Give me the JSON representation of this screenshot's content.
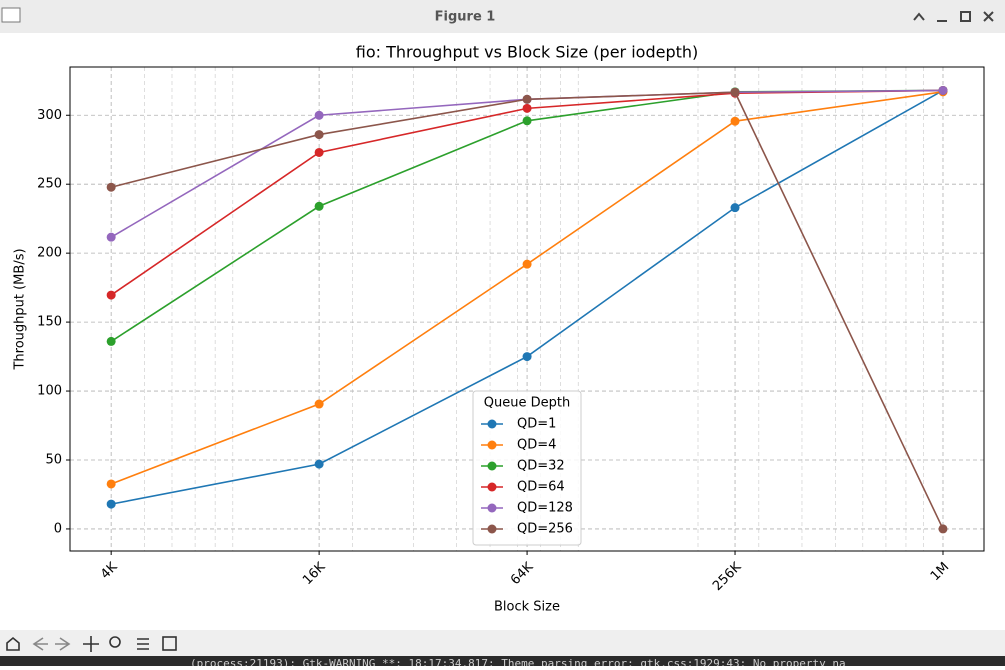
{
  "window": {
    "title": "Figure 1"
  },
  "chart_data": {
    "type": "line",
    "title": "fio: Throughput vs Block Size (per iodepth)",
    "x_label": "Block Size",
    "y_label": "Throughput (MB/s)",
    "x": [
      4,
      16,
      64,
      256,
      1024
    ],
    "xscale": "log",
    "xlim": [
      3.04,
      1346
    ],
    "xticks": [
      {
        "value": 4,
        "label": "4K"
      },
      {
        "value": 16,
        "label": "16K"
      },
      {
        "value": 64,
        "label": "64K"
      },
      {
        "value": 256,
        "label": "256K"
      },
      {
        "value": 1024,
        "label": "1M"
      }
    ],
    "ylim": [
      -16,
      335
    ],
    "yticks": [
      0,
      50,
      100,
      150,
      200,
      250,
      300
    ],
    "grid": true,
    "legend": {
      "title": "Queue Depth",
      "loc": "lower center"
    },
    "series": [
      {
        "name": "QD=1",
        "color": "#1f77b4",
        "values": [
          18,
          47,
          125,
          233,
          318
        ]
      },
      {
        "name": "QD=4",
        "color": "#ff7f0e",
        "values": [
          32.6,
          90.6,
          192,
          295.7,
          317
        ]
      },
      {
        "name": "QD=32",
        "color": "#2ca02c",
        "values": [
          136,
          234,
          296,
          317,
          318
        ]
      },
      {
        "name": "QD=64",
        "color": "#d62728",
        "values": [
          169.6,
          273,
          305,
          316,
          318
        ]
      },
      {
        "name": "QD=128",
        "color": "#9467bd",
        "values": [
          211.6,
          300,
          311.6,
          316.7,
          318
        ]
      },
      {
        "name": "QD=256",
        "color": "#8c564b",
        "values": [
          247.8,
          286,
          311.6,
          316.7,
          0
        ]
      }
    ]
  },
  "terminal": {
    "text": "(process:21193): Gtk-WARNING **: 18:17:34.817: Theme parsing error: gtk.css:1929:43: No property na"
  }
}
